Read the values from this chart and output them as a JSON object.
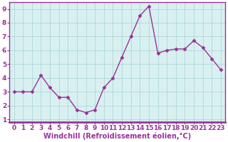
{
  "x": [
    0,
    1,
    2,
    3,
    4,
    5,
    6,
    7,
    8,
    9,
    10,
    11,
    12,
    13,
    14,
    15,
    16,
    17,
    18,
    19,
    20,
    21,
    22,
    23
  ],
  "y": [
    3.0,
    3.0,
    3.0,
    4.2,
    3.3,
    2.6,
    2.6,
    1.7,
    1.5,
    1.7,
    3.3,
    4.0,
    5.5,
    7.0,
    8.5,
    9.2,
    5.8,
    6.0,
    6.1,
    6.1,
    6.7,
    6.2,
    5.4,
    4.6
  ],
  "line_color": "#993399",
  "marker": "D",
  "marker_size": 2.5,
  "linewidth": 1.0,
  "xlabel": "Windchill (Refroidissement éolien,°C)",
  "xlabel_fontsize": 7,
  "xlim": [
    -0.5,
    23.5
  ],
  "ylim": [
    0.8,
    9.5
  ],
  "yticks": [
    1,
    2,
    3,
    4,
    5,
    6,
    7,
    8,
    9
  ],
  "xticks": [
    0,
    1,
    2,
    3,
    4,
    5,
    6,
    7,
    8,
    9,
    10,
    11,
    12,
    13,
    14,
    15,
    16,
    17,
    18,
    19,
    20,
    21,
    22,
    23
  ],
  "grid_color": "#b0d8d8",
  "background_color": "#d8f0f0",
  "tick_color": "#993399",
  "tick_fontsize": 6.5,
  "fig_bg": "#ffffff",
  "border_color": "#993399",
  "xlabel_color": "#993399"
}
